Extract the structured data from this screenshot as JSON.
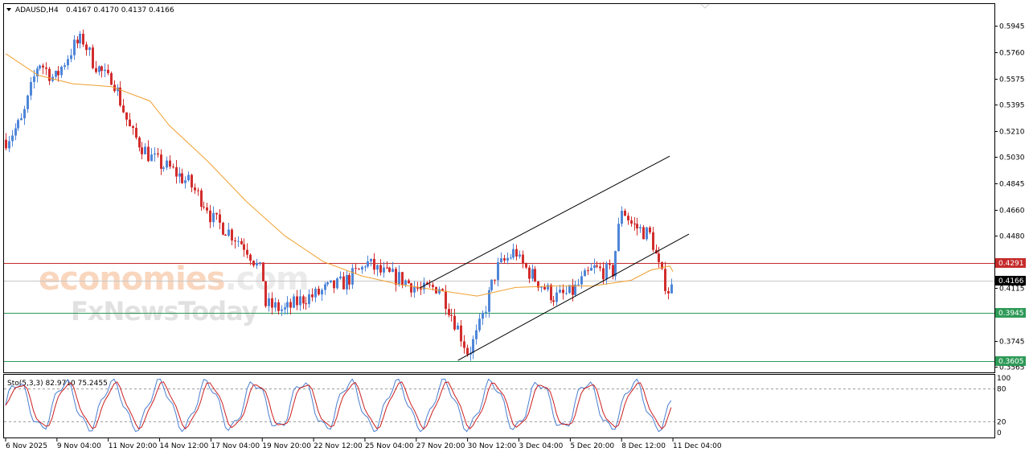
{
  "header": {
    "symbol_label": "ADAUSD,H4",
    "ohlc_label": "0.4167 0.4170 0.4137 0.4166",
    "menu_icon": "triangle-down-icon"
  },
  "watermark": {
    "line1": "economies",
    "line1_suffix": ".com",
    "line2": "FxNewsToday"
  },
  "stochastic": {
    "label": "Sto(5,3,3) 82.9710 75.2455",
    "axis_labels": [
      "100",
      "80",
      "20",
      "0"
    ],
    "levels": [
      80,
      20
    ],
    "main_color": "#4a7fd0",
    "signal_color": "#cc1f1f"
  },
  "colors": {
    "bull": "#4f86d8",
    "bear": "#d22d2d",
    "ma": "#f0a030",
    "resistance": "#c52b2b",
    "support": "#2e9a57",
    "current_price": "#000000",
    "channel": "#000000"
  },
  "chart_data": {
    "type": "candlestick",
    "symbol": "ADAUSD",
    "timeframe": "H4",
    "y_axis_labels": [
      0.5945,
      0.576,
      0.5575,
      0.5395,
      0.521,
      0.503,
      0.4845,
      0.466,
      0.448,
      0.4115,
      0.3745,
      0.3565
    ],
    "ylim": [
      0.3528,
      0.6096
    ],
    "x_axis_labels": [
      "6 Nov 2025",
      "9 Nov 04:00",
      "11 Nov 20:00",
      "14 Nov 12:00",
      "17 Nov 04:00",
      "19 Nov 20:00",
      "22 Nov 12:00",
      "25 Nov 04:00",
      "27 Nov 20:00",
      "30 Nov 12:00",
      "3 Dec 04:00",
      "5 Dec 20:00",
      "8 Dec 12:00",
      "11 Dec 04:00"
    ],
    "horizontal_levels": [
      {
        "name": "resistance",
        "value": 0.4291,
        "label": "0.4291"
      },
      {
        "name": "current",
        "value": 0.4166,
        "label": "0.4166"
      },
      {
        "name": "support-1",
        "value": 0.3945,
        "label": "0.3945"
      },
      {
        "name": "support-2",
        "value": 0.3605,
        "label": "0.3605"
      }
    ],
    "channel_lines": [
      {
        "name": "channel-upper",
        "from": [
          "28 Nov",
          0.4115
        ],
        "to": [
          "11 Dec",
          0.5035
        ]
      },
      {
        "name": "channel-lower",
        "from": [
          "30 Nov",
          0.3612
        ],
        "to": [
          "12 Dec",
          0.4492
        ]
      }
    ],
    "close_path": [
      [
        "6 Nov 2025",
        0.515
      ],
      [
        "7 Nov",
        0.528
      ],
      [
        "8 Nov",
        0.57
      ],
      [
        "9 Nov",
        0.557
      ],
      [
        "10 Nov",
        0.58
      ],
      [
        "10 Nov 12:00",
        0.585
      ],
      [
        "11 Nov",
        0.57
      ],
      [
        "11 Nov 20:00",
        0.556
      ],
      [
        "12 Nov",
        0.56
      ],
      [
        "13 Nov",
        0.52
      ],
      [
        "14 Nov",
        0.503
      ],
      [
        "14 Nov 12:00",
        0.498
      ],
      [
        "15 Nov",
        0.495
      ],
      [
        "16 Nov",
        0.485
      ],
      [
        "16 Nov 12:00",
        0.476
      ],
      [
        "17 Nov",
        0.468
      ],
      [
        "17 Nov 04:00",
        0.46
      ],
      [
        "18 Nov",
        0.452
      ],
      [
        "19 Nov",
        0.44
      ],
      [
        "19 Nov 20:00",
        0.42
      ],
      [
        "20 Nov",
        0.4
      ],
      [
        "21 Nov",
        0.396
      ],
      [
        "22 Nov",
        0.405
      ],
      [
        "22 Nov 12:00",
        0.406
      ],
      [
        "23 Nov",
        0.41
      ],
      [
        "24 Nov",
        0.415
      ],
      [
        "25 Nov",
        0.425
      ],
      [
        "25 Nov 04:00",
        0.43
      ],
      [
        "26 Nov",
        0.422
      ],
      [
        "27 Nov",
        0.418
      ],
      [
        "27 Nov 20:00",
        0.412
      ],
      [
        "28 Nov",
        0.409
      ],
      [
        "29 Nov",
        0.413
      ],
      [
        "30 Nov",
        0.383
      ],
      [
        "30 Nov 12:00",
        0.366
      ],
      [
        "1 Dec",
        0.38
      ],
      [
        "2 Dec",
        0.425
      ],
      [
        "3 Dec",
        0.438
      ],
      [
        "3 Dec 04:00",
        0.43
      ],
      [
        "4 Dec",
        0.418
      ],
      [
        "5 Dec",
        0.405
      ],
      [
        "5 Dec 20:00",
        0.408
      ],
      [
        "6 Dec",
        0.41
      ],
      [
        "7 Dec",
        0.425
      ],
      [
        "8 Dec",
        0.422
      ],
      [
        "8 Dec 12:00",
        0.468
      ],
      [
        "9 Dec",
        0.456
      ],
      [
        "10 Dec",
        0.448
      ],
      [
        "10 Dec 12:00",
        0.422
      ],
      [
        "11 Dec",
        0.408
      ],
      [
        "11 Dec 04:00",
        0.4166
      ]
    ],
    "moving_average": [
      [
        "6 Nov 2025",
        0.575
      ],
      [
        "8 Nov",
        0.56
      ],
      [
        "10 Nov",
        0.554
      ],
      [
        "12 Nov",
        0.552
      ],
      [
        "14 Nov",
        0.542
      ],
      [
        "15 Nov",
        0.525
      ],
      [
        "17 Nov",
        0.5
      ],
      [
        "19 Nov",
        0.472
      ],
      [
        "21 Nov",
        0.448
      ],
      [
        "23 Nov",
        0.43
      ],
      [
        "25 Nov",
        0.42
      ],
      [
        "27 Nov",
        0.414
      ],
      [
        "30 Nov",
        0.408
      ],
      [
        "1 Dec",
        0.406
      ],
      [
        "3 Dec",
        0.412
      ],
      [
        "5 Dec",
        0.413
      ],
      [
        "7 Dec",
        0.413
      ],
      [
        "9 Dec",
        0.417
      ],
      [
        "10 Dec",
        0.424
      ],
      [
        "11 Dec",
        0.427
      ],
      [
        "11 Dec 04:00",
        0.423
      ]
    ]
  }
}
